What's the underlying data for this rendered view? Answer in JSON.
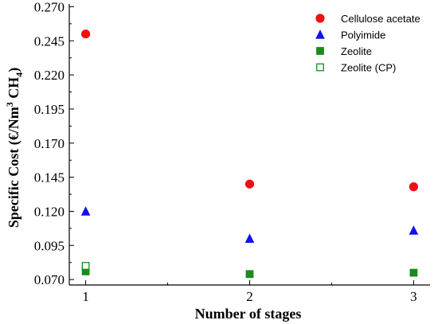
{
  "chart_data": {
    "type": "scatter",
    "xlabel": "Number of stages",
    "ylabel": {
      "main": "Specific Cost (€/Nm",
      "sup": "3",
      "mid": " CH",
      "sub": "4",
      "end": ")"
    },
    "xlim": [
      0.9,
      3.1
    ],
    "ylim": [
      0.066,
      0.272
    ],
    "x_ticks": [
      1,
      2,
      3
    ],
    "y_ticks": [
      "0.070",
      "0.095",
      "0.120",
      "0.145",
      "0.170",
      "0.195",
      "0.220",
      "0.245",
      "0.270"
    ],
    "grid": false,
    "legend_position": "top-right",
    "series": [
      {
        "name": "Cellulose acetate",
        "marker": "circle",
        "color": "#ee1111",
        "filled": true,
        "points": [
          {
            "x": 1,
            "y": 0.25
          },
          {
            "x": 2,
            "y": 0.14
          },
          {
            "x": 3,
            "y": 0.138
          }
        ]
      },
      {
        "name": "Polyimide",
        "marker": "triangle",
        "color": "#1111ee",
        "filled": true,
        "points": [
          {
            "x": 1,
            "y": 0.12
          },
          {
            "x": 2,
            "y": 0.1
          },
          {
            "x": 3,
            "y": 0.106
          }
        ]
      },
      {
        "name": "Zeolite",
        "marker": "square",
        "color": "#1a8a1a",
        "filled": true,
        "points": [
          {
            "x": 1,
            "y": 0.076
          },
          {
            "x": 2,
            "y": 0.074
          },
          {
            "x": 3,
            "y": 0.075
          }
        ]
      },
      {
        "name": "Zeolite (CP)",
        "marker": "square",
        "color": "#1a8a1a",
        "filled": false,
        "points": [
          {
            "x": 1,
            "y": 0.08
          }
        ]
      }
    ]
  }
}
